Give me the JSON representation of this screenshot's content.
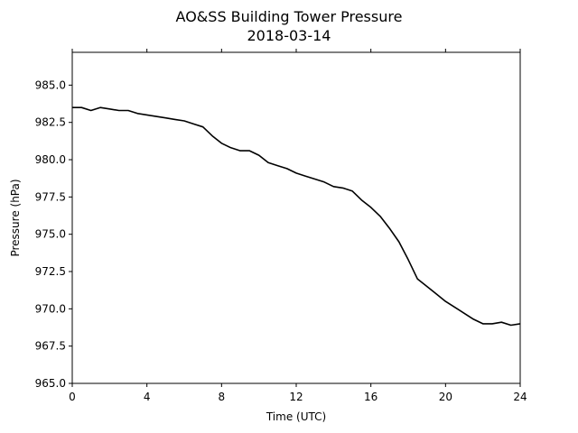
{
  "chart_data": {
    "type": "line",
    "title": "AO&SS Building Tower Pressure",
    "subtitle": "2018-03-14",
    "xlabel": "Time (UTC)",
    "ylabel": "Pressure (hPa)",
    "xlim": [
      0,
      24
    ],
    "ylim": [
      965.0,
      987.2
    ],
    "xticks": [
      0,
      4,
      8,
      12,
      16,
      20,
      24
    ],
    "xtick_labels": [
      "0",
      "4",
      "8",
      "12",
      "16",
      "20",
      "24"
    ],
    "yticks": [
      965.0,
      967.5,
      970.0,
      972.5,
      975.0,
      977.5,
      980.0,
      982.5,
      985.0
    ],
    "ytick_labels": [
      "965.0",
      "967.5",
      "970.0",
      "972.5",
      "975.0",
      "977.5",
      "980.0",
      "982.5",
      "985.0"
    ],
    "grid": false,
    "line_color": "#000000",
    "series": [
      {
        "x": [
          0.0,
          0.5,
          1.0,
          1.5,
          2.0,
          2.5,
          3.0,
          3.5,
          4.0,
          4.5,
          5.0,
          5.5,
          6.0,
          6.5,
          7.0,
          7.5,
          8.0,
          8.5,
          9.0,
          9.5,
          10.0,
          10.5,
          11.0,
          11.5,
          12.0,
          12.5,
          13.0,
          13.5,
          14.0,
          14.5,
          15.0,
          15.5,
          16.0,
          16.5,
          17.0,
          17.5,
          18.0,
          18.5,
          19.0,
          19.5,
          20.0,
          20.5,
          21.0,
          21.5,
          22.0,
          22.5,
          23.0,
          23.5,
          24.0
        ],
        "values": [
          983.5,
          983.5,
          983.3,
          983.5,
          983.4,
          983.3,
          983.3,
          983.1,
          983.0,
          982.9,
          982.8,
          982.7,
          982.6,
          982.4,
          982.2,
          981.6,
          981.1,
          980.8,
          980.6,
          980.6,
          980.3,
          979.8,
          979.6,
          979.4,
          979.1,
          978.9,
          978.7,
          978.5,
          978.2,
          978.1,
          977.9,
          977.3,
          976.8,
          976.2,
          975.4,
          974.5,
          973.3,
          972.0,
          971.5,
          971.0,
          970.5,
          970.1,
          969.7,
          969.3,
          969.0,
          969.0,
          969.1,
          968.9,
          969.0
        ]
      }
    ]
  }
}
